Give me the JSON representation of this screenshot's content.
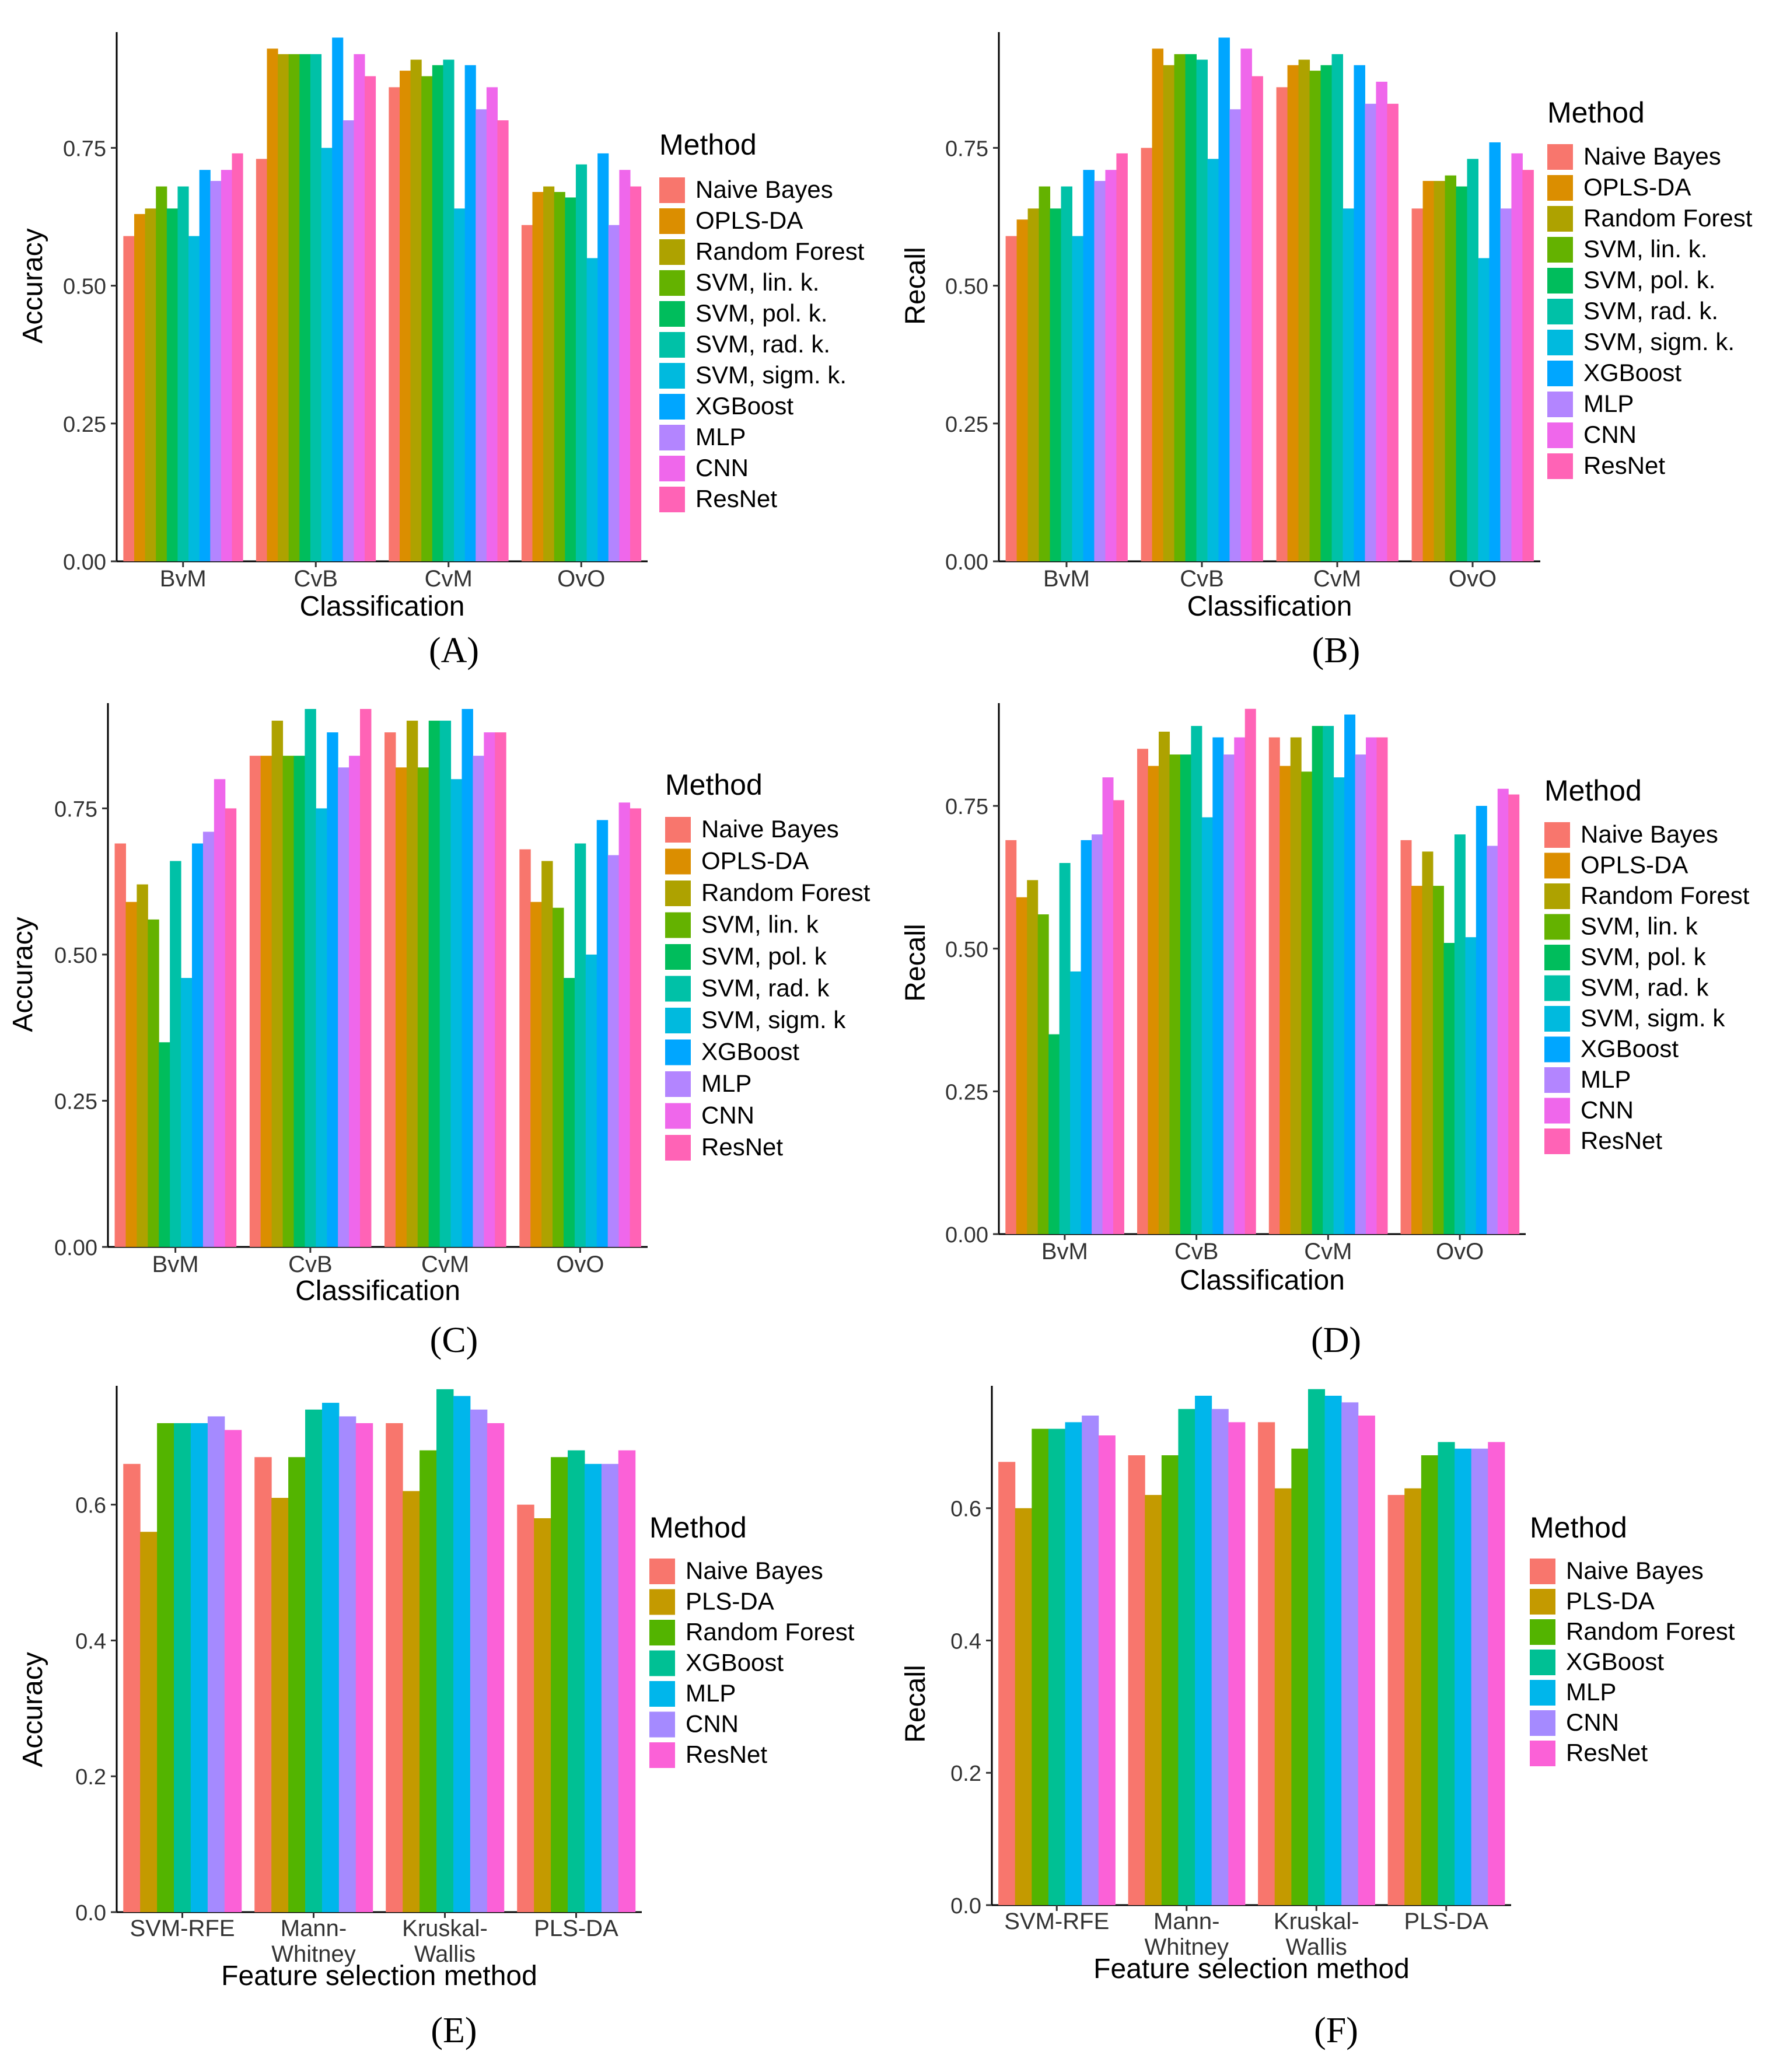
{
  "chart_data": [
    {
      "panel": "(A)",
      "type": "bar",
      "xlabel": "Classification",
      "ylabel": "Accuracy",
      "ylim": [
        0,
        0.96
      ],
      "yticks": [
        "0.00",
        "0.25",
        "0.50",
        "0.75"
      ],
      "legend_title": "Method",
      "categories": [
        "BvM",
        "CvB",
        "CvM",
        "OvO"
      ],
      "series": [
        {
          "name": "Naive Bayes",
          "color": "#F8766D",
          "values": [
            0.59,
            0.73,
            0.86,
            0.61
          ]
        },
        {
          "name": "OPLS-DA",
          "color": "#DB8E00",
          "values": [
            0.63,
            0.93,
            0.89,
            0.67
          ]
        },
        {
          "name": "Random Forest",
          "color": "#AEA200",
          "values": [
            0.64,
            0.92,
            0.91,
            0.68
          ]
        },
        {
          "name": "SVM, lin. k.",
          "color": "#64B200",
          "values": [
            0.68,
            0.92,
            0.88,
            0.67
          ]
        },
        {
          "name": "SVM, pol. k.",
          "color": "#00BD5C",
          "values": [
            0.64,
            0.92,
            0.9,
            0.66
          ]
        },
        {
          "name": "SVM, rad. k.",
          "color": "#00C1A7",
          "values": [
            0.68,
            0.92,
            0.91,
            0.72
          ]
        },
        {
          "name": "SVM, sigm. k.",
          "color": "#00BADE",
          "values": [
            0.59,
            0.75,
            0.64,
            0.55
          ]
        },
        {
          "name": "XGBoost",
          "color": "#00A6FF",
          "values": [
            0.71,
            0.95,
            0.9,
            0.74
          ]
        },
        {
          "name": "MLP",
          "color": "#B385FF",
          "values": [
            0.69,
            0.8,
            0.82,
            0.61
          ]
        },
        {
          "name": "CNN",
          "color": "#EF67EB",
          "values": [
            0.71,
            0.92,
            0.86,
            0.71
          ]
        },
        {
          "name": "ResNet",
          "color": "#FF63B6",
          "values": [
            0.74,
            0.88,
            0.8,
            0.68
          ]
        }
      ]
    },
    {
      "panel": "(B)",
      "type": "bar",
      "xlabel": "Classification",
      "ylabel": "Recall",
      "ylim": [
        0,
        0.96
      ],
      "yticks": [
        "0.00",
        "0.25",
        "0.50",
        "0.75"
      ],
      "legend_title": "Method",
      "categories": [
        "BvM",
        "CvB",
        "CvM",
        "OvO"
      ],
      "series": [
        {
          "name": "Naive Bayes",
          "color": "#F8766D",
          "values": [
            0.59,
            0.75,
            0.86,
            0.64
          ]
        },
        {
          "name": "OPLS-DA",
          "color": "#DB8E00",
          "values": [
            0.62,
            0.93,
            0.9,
            0.69
          ]
        },
        {
          "name": "Random Forest",
          "color": "#AEA200",
          "values": [
            0.64,
            0.9,
            0.91,
            0.69
          ]
        },
        {
          "name": "SVM, lin. k.",
          "color": "#64B200",
          "values": [
            0.68,
            0.92,
            0.89,
            0.7
          ]
        },
        {
          "name": "SVM, pol. k.",
          "color": "#00BD5C",
          "values": [
            0.64,
            0.92,
            0.9,
            0.68
          ]
        },
        {
          "name": "SVM, rad. k.",
          "color": "#00C1A7",
          "values": [
            0.68,
            0.91,
            0.92,
            0.73
          ]
        },
        {
          "name": "SVM, sigm. k.",
          "color": "#00BADE",
          "values": [
            0.59,
            0.73,
            0.64,
            0.55
          ]
        },
        {
          "name": "XGBoost",
          "color": "#00A6FF",
          "values": [
            0.71,
            0.95,
            0.9,
            0.76
          ]
        },
        {
          "name": "MLP",
          "color": "#B385FF",
          "values": [
            0.69,
            0.82,
            0.83,
            0.64
          ]
        },
        {
          "name": "CNN",
          "color": "#EF67EB",
          "values": [
            0.71,
            0.93,
            0.87,
            0.74
          ]
        },
        {
          "name": "ResNet",
          "color": "#FF63B6",
          "values": [
            0.74,
            0.88,
            0.83,
            0.71
          ]
        }
      ]
    },
    {
      "panel": "(C)",
      "type": "bar",
      "xlabel": "Classification",
      "ylabel": "Accuracy",
      "ylim": [
        0,
        0.93
      ],
      "yticks": [
        "0.00",
        "0.25",
        "0.50",
        "0.75"
      ],
      "legend_title": "Method",
      "categories": [
        "BvM",
        "CvB",
        "CvM",
        "OvO"
      ],
      "series": [
        {
          "name": "Naive Bayes",
          "color": "#F8766D",
          "values": [
            0.69,
            0.84,
            0.88,
            0.68
          ]
        },
        {
          "name": "OPLS-DA",
          "color": "#DB8E00",
          "values": [
            0.59,
            0.84,
            0.82,
            0.59
          ]
        },
        {
          "name": "Random Forest",
          "color": "#AEA200",
          "values": [
            0.62,
            0.9,
            0.9,
            0.66
          ]
        },
        {
          "name": "SVM, lin. k",
          "color": "#64B200",
          "values": [
            0.56,
            0.84,
            0.82,
            0.58
          ]
        },
        {
          "name": "SVM, pol. k",
          "color": "#00BD5C",
          "values": [
            0.35,
            0.84,
            0.9,
            0.46
          ]
        },
        {
          "name": "SVM, rad. k",
          "color": "#00C1A7",
          "values": [
            0.66,
            0.92,
            0.9,
            0.69
          ]
        },
        {
          "name": "SVM, sigm. k",
          "color": "#00BADE",
          "values": [
            0.46,
            0.75,
            0.8,
            0.5
          ]
        },
        {
          "name": "XGBoost",
          "color": "#00A6FF",
          "values": [
            0.69,
            0.88,
            0.92,
            0.73
          ]
        },
        {
          "name": "MLP",
          "color": "#B385FF",
          "values": [
            0.71,
            0.82,
            0.84,
            0.67
          ]
        },
        {
          "name": "CNN",
          "color": "#EF67EB",
          "values": [
            0.8,
            0.84,
            0.88,
            0.76
          ]
        },
        {
          "name": "ResNet",
          "color": "#FF63B6",
          "values": [
            0.75,
            0.92,
            0.88,
            0.75
          ]
        }
      ]
    },
    {
      "panel": "(D)",
      "type": "bar",
      "xlabel": "Classification",
      "ylabel": "Recall",
      "ylim": [
        0,
        0.93
      ],
      "yticks": [
        "0.00",
        "0.25",
        "0.50",
        "0.75"
      ],
      "legend_title": "Method",
      "categories": [
        "BvM",
        "CvB",
        "CvM",
        "OvO"
      ],
      "series": [
        {
          "name": "Naive Bayes",
          "color": "#F8766D",
          "values": [
            0.69,
            0.85,
            0.87,
            0.69
          ]
        },
        {
          "name": "OPLS-DA",
          "color": "#DB8E00",
          "values": [
            0.59,
            0.82,
            0.82,
            0.61
          ]
        },
        {
          "name": "Random Forest",
          "color": "#AEA200",
          "values": [
            0.62,
            0.88,
            0.87,
            0.67
          ]
        },
        {
          "name": "SVM, lin. k",
          "color": "#64B200",
          "values": [
            0.56,
            0.84,
            0.81,
            0.61
          ]
        },
        {
          "name": "SVM, pol. k",
          "color": "#00BD5C",
          "values": [
            0.35,
            0.84,
            0.89,
            0.51
          ]
        },
        {
          "name": "SVM, rad. k",
          "color": "#00C1A7",
          "values": [
            0.65,
            0.89,
            0.89,
            0.7
          ]
        },
        {
          "name": "SVM, sigm. k",
          "color": "#00BADE",
          "values": [
            0.46,
            0.73,
            0.8,
            0.52
          ]
        },
        {
          "name": "XGBoost",
          "color": "#00A6FF",
          "values": [
            0.69,
            0.87,
            0.91,
            0.75
          ]
        },
        {
          "name": "MLP",
          "color": "#B385FF",
          "values": [
            0.7,
            0.84,
            0.84,
            0.68
          ]
        },
        {
          "name": "CNN",
          "color": "#EF67EB",
          "values": [
            0.8,
            0.87,
            0.87,
            0.78
          ]
        },
        {
          "name": "ResNet",
          "color": "#FF63B6",
          "values": [
            0.76,
            0.92,
            0.87,
            0.77
          ]
        }
      ]
    },
    {
      "panel": "(E)",
      "type": "bar",
      "xlabel": "Feature selection method",
      "ylabel": "Accuracy",
      "ylim": [
        0,
        0.775
      ],
      "yticks": [
        "0.0",
        "0.2",
        "0.4",
        "0.6"
      ],
      "legend_title": "Method",
      "categories": [
        "SVM-RFE",
        "Mann-\nWhitney",
        "Kruskal-\nWallis",
        "PLS-DA"
      ],
      "series": [
        {
          "name": "Naive Bayes",
          "color": "#F8766D",
          "values": [
            0.66,
            0.67,
            0.72,
            0.6
          ]
        },
        {
          "name": "PLS-DA",
          "color": "#C49A00",
          "values": [
            0.56,
            0.61,
            0.62,
            0.58
          ]
        },
        {
          "name": "Random Forest",
          "color": "#53B400",
          "values": [
            0.72,
            0.67,
            0.68,
            0.67
          ]
        },
        {
          "name": "XGBoost",
          "color": "#00C094",
          "values": [
            0.72,
            0.74,
            0.77,
            0.68
          ]
        },
        {
          "name": "MLP",
          "color": "#00B6EB",
          "values": [
            0.72,
            0.75,
            0.76,
            0.66
          ]
        },
        {
          "name": "CNN",
          "color": "#A58AFF",
          "values": [
            0.73,
            0.73,
            0.74,
            0.66
          ]
        },
        {
          "name": "ResNet",
          "color": "#FB61D7",
          "values": [
            0.71,
            0.72,
            0.72,
            0.68
          ]
        }
      ]
    },
    {
      "panel": "(F)",
      "type": "bar",
      "xlabel": "Feature selection method",
      "ylabel": "Recall",
      "ylim": [
        0,
        0.785
      ],
      "yticks": [
        "0.0",
        "0.2",
        "0.4",
        "0.6"
      ],
      "legend_title": "Method",
      "categories": [
        "SVM-RFE",
        "Mann-\nWhitney",
        "Kruskal-\nWallis",
        "PLS-DA"
      ],
      "series": [
        {
          "name": "Naive Bayes",
          "color": "#F8766D",
          "values": [
            0.67,
            0.68,
            0.73,
            0.62
          ]
        },
        {
          "name": "PLS-DA",
          "color": "#C49A00",
          "values": [
            0.6,
            0.62,
            0.63,
            0.63
          ]
        },
        {
          "name": "Random Forest",
          "color": "#53B400",
          "values": [
            0.72,
            0.68,
            0.69,
            0.68
          ]
        },
        {
          "name": "XGBoost",
          "color": "#00C094",
          "values": [
            0.72,
            0.75,
            0.78,
            0.7
          ]
        },
        {
          "name": "MLP",
          "color": "#00B6EB",
          "values": [
            0.73,
            0.77,
            0.77,
            0.69
          ]
        },
        {
          "name": "CNN",
          "color": "#A58AFF",
          "values": [
            0.74,
            0.75,
            0.76,
            0.69
          ]
        },
        {
          "name": "ResNet",
          "color": "#FB61D7",
          "values": [
            0.71,
            0.73,
            0.74,
            0.7
          ]
        }
      ]
    }
  ]
}
